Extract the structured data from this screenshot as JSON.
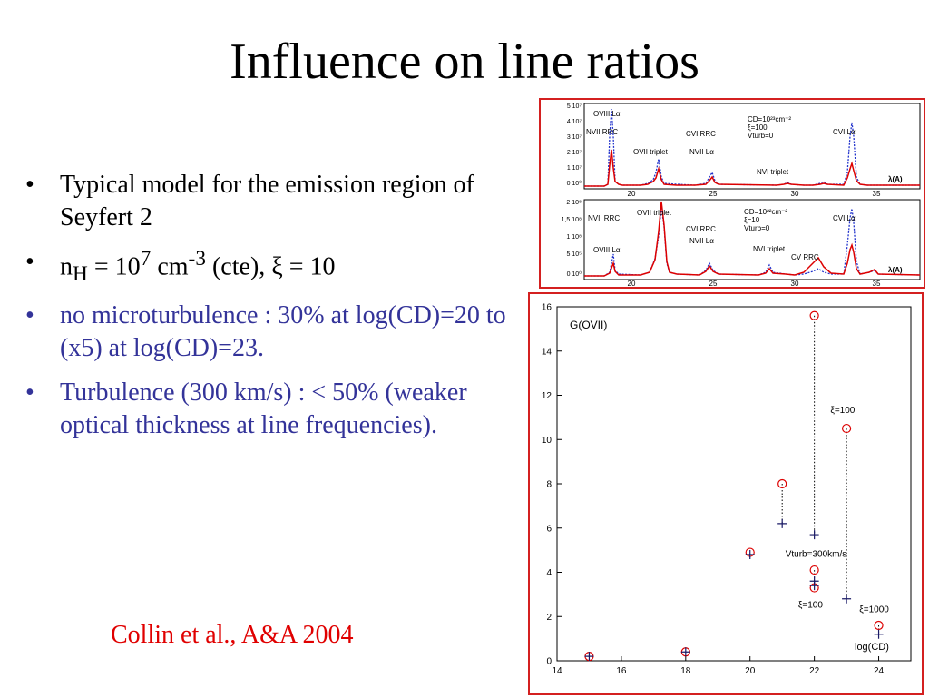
{
  "slide": {
    "title": "Influence on line ratios",
    "bullets": [
      "Typical model for the emission region of Seyfert 2",
      "no microturbulence : 30% at log(CD)=20 to (x5) at log(CD)=23.",
      "Turbulence (300 km/s) : < 50% (weaker optical thickness at line frequencies)."
    ],
    "density_bullet": {
      "n": "n",
      "sub": "H",
      "eq": " = 10",
      "exp": "7",
      "unit": " cm",
      "unit_exp": "-3",
      "rest": " (cte), ξ = 10"
    },
    "bullet_symbol": "•",
    "citation": "Collin et al., A&A 2004"
  },
  "colors": {
    "title": "#000000",
    "blue_text": "#333399",
    "citation": "#e00000",
    "frame": "#d42020",
    "red_curve": "#dd0000",
    "blue_curve": "#2233cc"
  },
  "spectra": {
    "top": {
      "ytick_labels": [
        "5 10⁷",
        "4 10⁷",
        "3 10⁷",
        "2 10⁷",
        "1 10⁷",
        "0 10⁰"
      ],
      "xtick_labels": [
        "20",
        "25",
        "30",
        "35"
      ],
      "x_axis_label": "λ(A)",
      "info": [
        "CD=10²³cm⁻²",
        "ξ=100",
        "Vturb=0"
      ],
      "line_labels": [
        "OVIII Lα",
        "NVII RRC",
        "OVII triplet",
        "CVI RRC",
        "NVII Lα",
        "NVI triplet",
        "CVI Lα"
      ]
    },
    "bottom": {
      "ytick_labels": [
        "2 10⁸",
        "1,5 10⁸",
        "1 10⁸",
        "5 10⁵",
        "0 10⁰"
      ],
      "xtick_labels": [
        "20",
        "25",
        "30",
        "35"
      ],
      "x_axis_label": "λ(A)",
      "info": [
        "CD=10²²cm⁻²",
        "ξ=10",
        "Vturb=0"
      ],
      "line_labels": [
        "NVII RRC",
        "OVII triplet",
        "CVI RRC",
        "NVII Lα",
        "OVIII Lα",
        "NVI triplet",
        "CV RRC",
        "CVI Lα"
      ]
    }
  },
  "chart_data": {
    "type": "scatter",
    "title": "G(OVII)",
    "xlabel": "log(CD)",
    "xlim": [
      14,
      25
    ],
    "ylim": [
      0,
      16
    ],
    "xticks": [
      14,
      16,
      18,
      20,
      22,
      24
    ],
    "yticks": [
      0,
      2,
      4,
      6,
      8,
      10,
      12,
      14,
      16
    ],
    "series": [
      {
        "marker": "circle",
        "color": "#dd0000",
        "x": [
          15,
          18,
          20,
          21,
          22,
          22,
          22,
          23,
          24
        ],
        "y": [
          0.2,
          0.4,
          4.9,
          8.0,
          15.6,
          4.1,
          3.3,
          10.5,
          1.6
        ]
      },
      {
        "marker": "plus",
        "color": "#1a1a66",
        "x": [
          15,
          18,
          20,
          21,
          22,
          22,
          22,
          23,
          24
        ],
        "y": [
          0.2,
          0.4,
          4.8,
          6.2,
          5.7,
          3.6,
          3.4,
          2.8,
          1.2
        ]
      }
    ],
    "connectors": [
      {
        "x": 21,
        "y_from": 8.0,
        "y_to": 6.2
      },
      {
        "x": 22,
        "y_from": 15.6,
        "y_to": 5.7
      },
      {
        "x": 22,
        "y_from": 4.1,
        "y_to": 3.6
      },
      {
        "x": 23,
        "y_from": 10.5,
        "y_to": 2.8
      },
      {
        "x": 24,
        "y_from": 1.6,
        "y_to": 1.2
      }
    ],
    "annotations": [
      {
        "text": "ξ=100",
        "x": 22.5,
        "y": 11.2
      },
      {
        "text": "Vturb=300km/s",
        "x": 21.1,
        "y": 4.7
      },
      {
        "text": "ξ=100",
        "x": 21.5,
        "y": 2.4
      },
      {
        "text": "ξ=1000",
        "x": 23.4,
        "y": 2.2
      }
    ]
  }
}
